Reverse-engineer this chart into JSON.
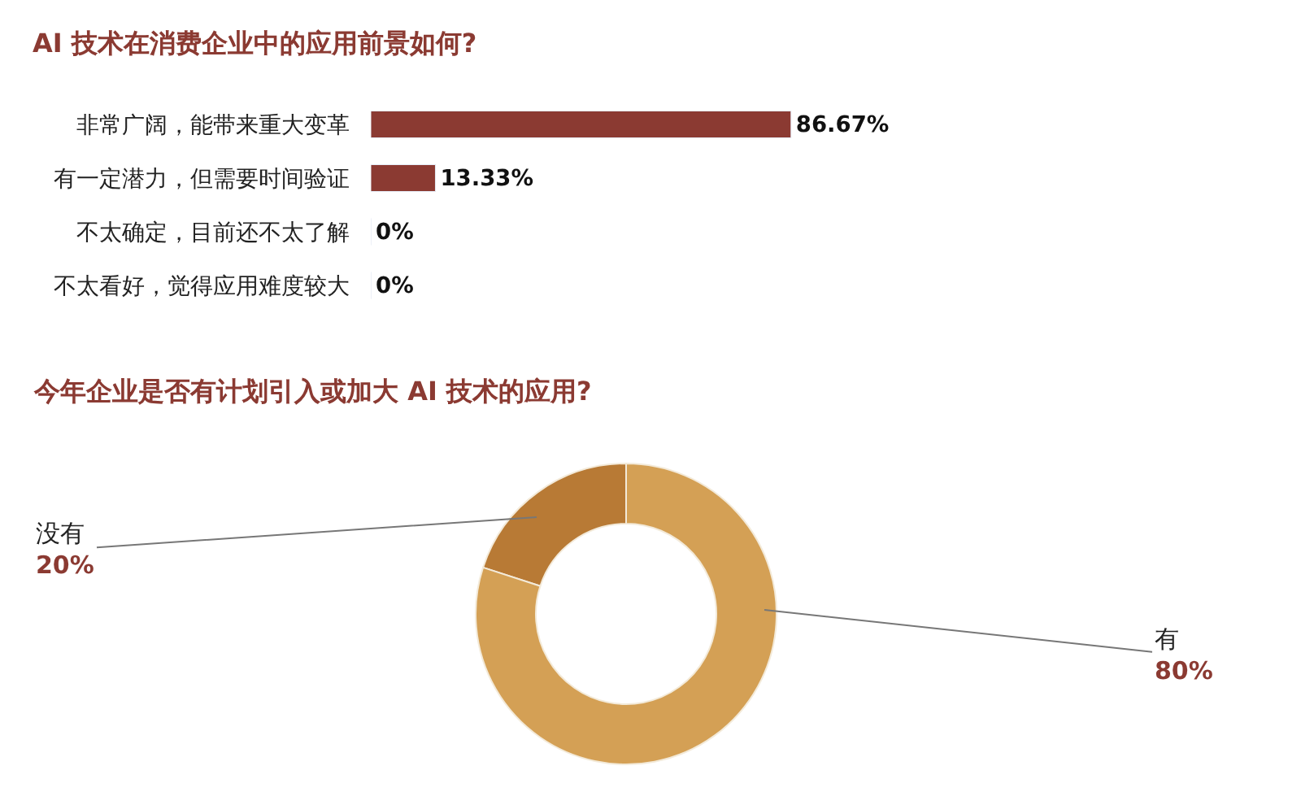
{
  "chart_data": [
    {
      "type": "bar",
      "orientation": "horizontal",
      "title": "AI 技术在消费企业中的应用前景如何?",
      "categories": [
        "非常广阔，能带来重大变革",
        "有一定潜力，但需要时间验证",
        "不太确定，目前还不太了解",
        "不太看好，觉得应用难度较大"
      ],
      "values": [
        86.67,
        13.33,
        0,
        0
      ],
      "color": "#8b3a32",
      "value_labels": [
        "86.67%",
        "13.33%",
        "0%",
        "0%"
      ],
      "tick_labels": "y"
    },
    {
      "type": "donut",
      "title": "今年企业是否有计划引入或加大 AI 技术的应用?",
      "categories": [
        "没有",
        "有"
      ],
      "values": [
        20,
        80
      ],
      "colors": [
        "#b87a35",
        "#d4a055"
      ],
      "value_labels": [
        "20%",
        "80%"
      ]
    }
  ]
}
